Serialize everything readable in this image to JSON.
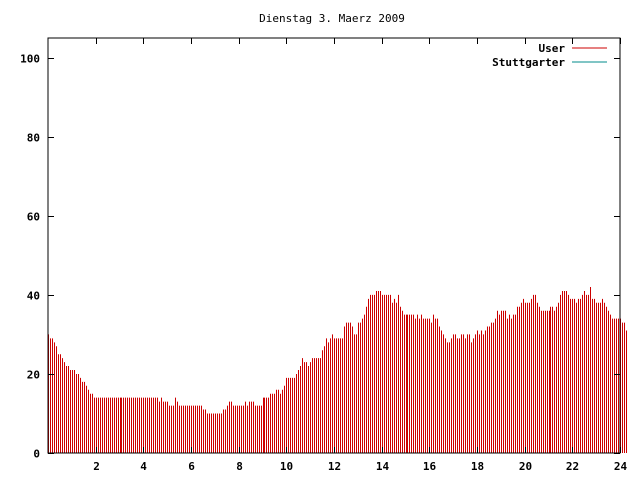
{
  "chart_data": {
    "type": "bar",
    "title": "Dienstag 3. Maerz 2009",
    "xlabel": "",
    "ylabel": "",
    "xlim": [
      0,
      24
    ],
    "ylim": [
      0,
      105
    ],
    "x_ticks": [
      2,
      4,
      6,
      8,
      10,
      12,
      14,
      16,
      18,
      20,
      22,
      24
    ],
    "y_ticks": [
      0,
      20,
      40,
      60,
      80,
      100
    ],
    "legend_position": "top-right",
    "grid": false,
    "series": [
      {
        "name": "User",
        "color": "#cc0000",
        "samples_per_hour": 12,
        "values": [
          30,
          29,
          29,
          28,
          27,
          25,
          25,
          24,
          23,
          22,
          22,
          21,
          21,
          21,
          20,
          20,
          19,
          18,
          18,
          17,
          16,
          15,
          15,
          14,
          14,
          14,
          14,
          14,
          14,
          14,
          14,
          14,
          14,
          14,
          14,
          14,
          14,
          14,
          14,
          14,
          14,
          14,
          14,
          14,
          14,
          14,
          14,
          14,
          14,
          14,
          14,
          14,
          14,
          14,
          14,
          14,
          13,
          14,
          13,
          13,
          13,
          12,
          12,
          12,
          14,
          13,
          12,
          12,
          12,
          12,
          12,
          12,
          12,
          12,
          12,
          12,
          12,
          12,
          11,
          11,
          10,
          10,
          10,
          10,
          10,
          10,
          10,
          10,
          11,
          11,
          12,
          13,
          13,
          12,
          12,
          12,
          12,
          12,
          12,
          13,
          12,
          13,
          13,
          13,
          12,
          12,
          12,
          12,
          14,
          14,
          14,
          14,
          15,
          15,
          15,
          16,
          16,
          15,
          16,
          17,
          19,
          19,
          19,
          19,
          19,
          20,
          21,
          22,
          24,
          23,
          23,
          22,
          23,
          24,
          24,
          24,
          24,
          24,
          26,
          27,
          29,
          28,
          29,
          30,
          29,
          29,
          29,
          29,
          29,
          32,
          33,
          33,
          33,
          32,
          30,
          30,
          33,
          33,
          34,
          35,
          37,
          39,
          40,
          40,
          40,
          41,
          41,
          41,
          40,
          40,
          40,
          40,
          40,
          38,
          39,
          38,
          40,
          37,
          36,
          35,
          35,
          35,
          35,
          35,
          35,
          34,
          35,
          34,
          35,
          34,
          34,
          34,
          34,
          33,
          35,
          34,
          34,
          32,
          31,
          30,
          29,
          28,
          28,
          29,
          30,
          30,
          29,
          29,
          30,
          30,
          29,
          30,
          30,
          28,
          29,
          30,
          31,
          30,
          31,
          30,
          31,
          32,
          32,
          33,
          33,
          34,
          36,
          35,
          36,
          36,
          36,
          34,
          35,
          34,
          35,
          35,
          37,
          37,
          38,
          39,
          38,
          38,
          38,
          39,
          40,
          40,
          38,
          37,
          36,
          36,
          36,
          36,
          36,
          37,
          37,
          36,
          37,
          38,
          40,
          41,
          41,
          41,
          40,
          39,
          39,
          39,
          38,
          39,
          39,
          40,
          41,
          40,
          40,
          42,
          39,
          39,
          38,
          38,
          38,
          39,
          38,
          37,
          36,
          35,
          34,
          34,
          34,
          34,
          34,
          33,
          33,
          31
        ]
      },
      {
        "name": "Stuttgarter",
        "color": "#008b8b",
        "values": []
      }
    ]
  }
}
